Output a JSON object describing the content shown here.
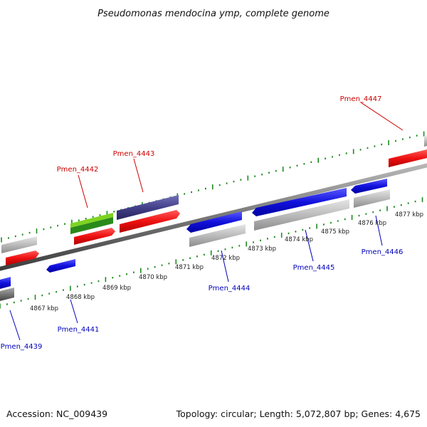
{
  "title": "Pseudomonas mendocina ymp, complete genome",
  "footer": {
    "accession": "Accession: NC_009439",
    "summary": "Topology: circular; Length: 5,072,807 bp; Genes: 4,675"
  },
  "kbp_labels": [
    "4867 kbp",
    "4868 kbp",
    "4869 kbp",
    "4870 kbp",
    "4871 kbp",
    "4872 kbp",
    "4873 kbp",
    "4874 kbp",
    "4875 kbp",
    "4876 kbp",
    "4877 kbp"
  ],
  "gene_labels": {
    "pmen_4439": "Pmen_4439",
    "pmen_4441": "Pmen_4441",
    "pmen_4442": "Pmen_4442",
    "pmen_4443": "Pmen_4443",
    "pmen_4444": "Pmen_4444",
    "pmen_4445": "Pmen_4445",
    "pmen_4446": "Pmen_4446",
    "pmen_4447": "Pmen_4447"
  },
  "colors": {
    "forward_label": "#cc0000",
    "reverse_label": "#0000bb",
    "red_feature": "#ee1111",
    "blue_feature": "#1111dd",
    "gray_feature": "#bbbbbb",
    "dark_gray_feature": "#777777",
    "purple_feature": "#44408a",
    "green_feature": "#7ed321",
    "dark_green_feature": "#2a8a1a",
    "tick": "#1f8a1f",
    "backbone": "#777777"
  }
}
